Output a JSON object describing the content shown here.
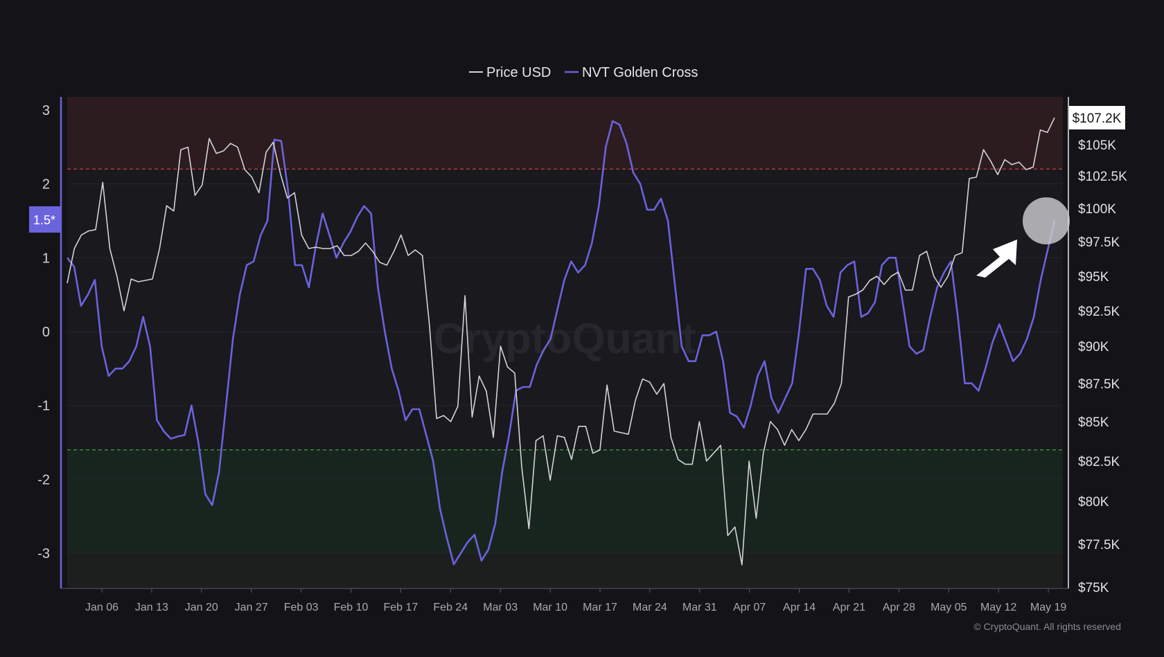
{
  "legend": {
    "price_label": "Price USD",
    "nvt_label": "NVT Golden Cross"
  },
  "watermark": "CryptoQuant",
  "copyright": "© CryptoQuant. All rights reserved",
  "current_price_badge": "$107.2K",
  "left_axis_badge": "1.5*",
  "colors": {
    "background": "#141418",
    "plot": "#19191e",
    "price": "#d4d4d8",
    "nvt": "#6b63dc",
    "overbought": "#2c1c20",
    "oversold": "#18251f",
    "red_line": "#b03a3a",
    "green_line": "#3d8a3d",
    "badge": "#6b63dc"
  },
  "chart_data": {
    "type": "line",
    "x_ticks": [
      "Jan 06",
      "Jan 13",
      "Jan 20",
      "Jan 27",
      "Feb 03",
      "Feb 10",
      "Feb 17",
      "Feb 24",
      "Mar 03",
      "Mar 10",
      "Mar 17",
      "Mar 24",
      "Mar 31",
      "Apr 07",
      "Apr 14",
      "Apr 21",
      "Apr 28",
      "May 05",
      "May 12",
      "May 19"
    ],
    "left_axis": {
      "ticks": [
        "3",
        "2",
        "1",
        "0",
        "-1",
        "-2",
        "-3"
      ],
      "range": [
        -3.5,
        3.2
      ]
    },
    "right_axis": {
      "ticks": [
        "$105K",
        "$102.5K",
        "$100K",
        "$97.5K",
        "$95K",
        "$92.5K",
        "$90K",
        "$87.5K",
        "$85K",
        "$82.5K",
        "$80K",
        "$77.5K",
        "$75K"
      ],
      "range": [
        75000,
        108000
      ]
    },
    "bands": {
      "overbought_threshold": 2.2,
      "oversold_threshold": -1.6,
      "lower_zone": -3.0
    },
    "series": [
      {
        "name": "Price USD",
        "axis": "right",
        "values": [
          94500,
          97000,
          98000,
          98300,
          98400,
          102000,
          97000,
          95000,
          92500,
          94800,
          94600,
          94700,
          94800,
          97000,
          100200,
          99800,
          104600,
          104800,
          101000,
          101800,
          105500,
          104300,
          104500,
          105100,
          104800,
          103000,
          102400,
          101200,
          104400,
          105200,
          102700,
          100800,
          101200,
          98000,
          97000,
          97100,
          97000,
          97000,
          97200,
          96500,
          96500,
          96800,
          97400,
          96800,
          96000,
          95800,
          96800,
          98000,
          96500,
          96900,
          96500,
          91500,
          85200,
          85400,
          85000,
          86000,
          93600,
          85300,
          88000,
          87000,
          84000,
          90000,
          88600,
          88200,
          82100,
          78400,
          83800,
          84100,
          81300,
          84100,
          84000,
          82600,
          84700,
          84700,
          83000,
          83200,
          87400,
          84400,
          84300,
          84200,
          86400,
          87800,
          87600,
          86800,
          87500,
          84000,
          82600,
          82300,
          82300,
          85000,
          82500,
          83000,
          83500,
          78000,
          78500,
          76300,
          82500,
          79000,
          83000,
          85000,
          84500,
          83500,
          84500,
          83800,
          84500,
          85500,
          85500,
          85500,
          86200,
          87500,
          93500,
          93700,
          94000,
          94700,
          95000,
          94400,
          95000,
          95300,
          94000,
          94000,
          96500,
          96800,
          95000,
          94200,
          95000,
          96500,
          96700,
          102300,
          102400,
          104600,
          103700,
          102600,
          103800,
          103400,
          103600,
          103000,
          103200,
          106200,
          106000,
          107200
        ]
      },
      {
        "name": "NVT Golden Cross",
        "axis": "left",
        "values": [
          1.0,
          0.88,
          0.35,
          0.5,
          0.7,
          -0.2,
          -0.6,
          -0.5,
          -0.5,
          -0.4,
          -0.2,
          0.2,
          -0.2,
          -1.2,
          -1.35,
          -1.45,
          -1.42,
          -1.4,
          -1.0,
          -1.5,
          -2.2,
          -2.35,
          -1.9,
          -1.0,
          -0.1,
          0.5,
          0.9,
          0.95,
          1.3,
          1.5,
          2.6,
          2.58,
          1.9,
          0.9,
          0.9,
          0.6,
          1.15,
          1.6,
          1.3,
          1.0,
          1.2,
          1.35,
          1.55,
          1.7,
          1.6,
          0.6,
          0.0,
          -0.5,
          -0.8,
          -1.2,
          -1.05,
          -1.05,
          -1.4,
          -1.75,
          -2.4,
          -2.8,
          -3.15,
          -3.0,
          -2.85,
          -2.75,
          -3.1,
          -2.95,
          -2.6,
          -1.9,
          -1.4,
          -0.8,
          -0.75,
          -0.75,
          -0.45,
          -0.25,
          -0.1,
          0.3,
          0.7,
          0.95,
          0.8,
          0.9,
          1.2,
          1.7,
          2.5,
          2.85,
          2.8,
          2.55,
          2.15,
          2.0,
          1.65,
          1.65,
          1.8,
          1.5,
          0.65,
          -0.2,
          -0.4,
          -0.4,
          -0.05,
          -0.05,
          0.0,
          -0.4,
          -1.1,
          -1.15,
          -1.3,
          -1.0,
          -0.6,
          -0.4,
          -0.9,
          -1.1,
          -0.9,
          -0.7,
          0.0,
          0.85,
          0.85,
          0.7,
          0.35,
          0.2,
          0.8,
          0.9,
          0.95,
          0.2,
          0.25,
          0.4,
          0.9,
          1.0,
          1.0,
          0.4,
          -0.2,
          -0.3,
          -0.25,
          0.2,
          0.6,
          0.8,
          0.95,
          0.2,
          -0.7,
          -0.7,
          -0.8,
          -0.5,
          -0.15,
          0.1,
          -0.15,
          -0.4,
          -0.3,
          -0.1,
          0.2,
          0.7,
          1.1,
          1.5
        ]
      }
    ]
  }
}
